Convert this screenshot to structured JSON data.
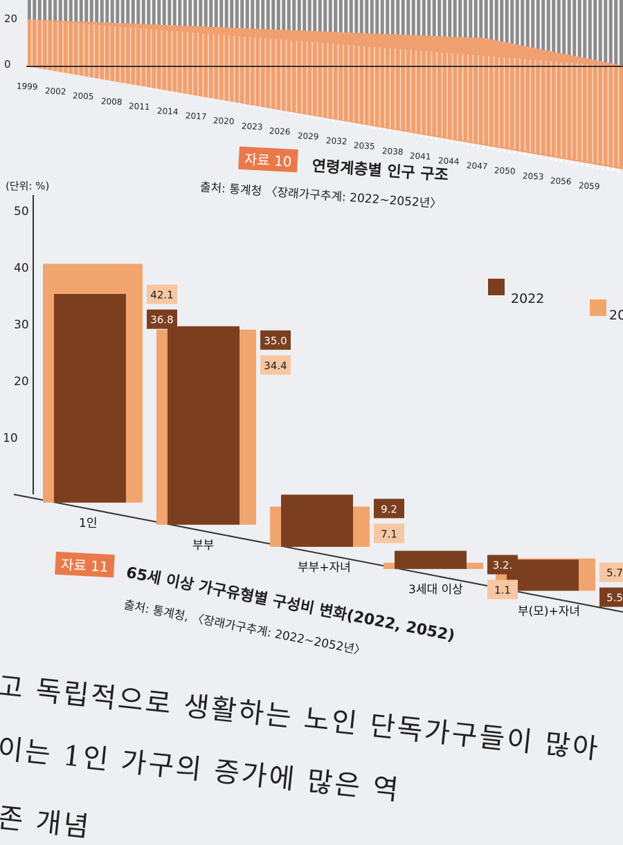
{
  "chart_data": [
    {
      "type": "area",
      "caption_label": "자료 10",
      "title": "연령계층별 인구 구조",
      "source": "출처: 통계청 〈장래가구추계: 2022~2052년〉",
      "x_tick_labels": [
        "1999",
        "2002",
        "2005",
        "2008",
        "2011",
        "2014",
        "2017",
        "2020",
        "2023",
        "2026",
        "2029",
        "2032",
        "2035",
        "2038",
        "2041",
        "2044",
        "2047",
        "2050",
        "2053",
        "2056",
        "2059"
      ],
      "y_tick_labels": [
        "20",
        "0"
      ],
      "colors": {
        "lower_band": "#f0a070",
        "upper_band": "#8c8c8c"
      }
    },
    {
      "type": "bar",
      "caption_label": "자료 11",
      "title": "65세 이상 가구유형별 구성비 변화(2022, 2052)",
      "source": "출처: 통계청, 〈장래가구추계: 2022~2052년〉",
      "unit": "(단위: %)",
      "categories": [
        "1인",
        "부부",
        "부부+자녀",
        "3세대 이상",
        "부(모)+자녀"
      ],
      "series": [
        {
          "name": "2022",
          "values": [
            36.8,
            35.0,
            9.2,
            3.2,
            5.5
          ],
          "labels": [
            "36.8",
            "35.0",
            "9.2",
            "3.2.",
            "5.5"
          ],
          "color": "#7b3f1f"
        },
        {
          "name": "20",
          "values": [
            42.1,
            34.4,
            7.1,
            1.1,
            5.7
          ],
          "labels": [
            "42.1",
            "34.4",
            "7.1",
            "1.1",
            "5.7"
          ],
          "color": "#f0a56e"
        }
      ],
      "y_ticks": [
        10,
        20,
        30,
        40,
        50
      ],
      "ylim": [
        0,
        52
      ]
    }
  ],
  "body_text": [
    "고 독립적으로 생활하는 노인 단독가구들이 많아",
    "이는 1인 가구의 증가에 많은 역",
    "존 개념"
  ]
}
